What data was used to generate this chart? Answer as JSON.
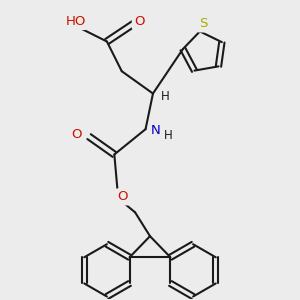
{
  "background_color": "#ececec",
  "bond_color": "#1a1a1a",
  "oxygen_color": "#cc1100",
  "nitrogen_color": "#0000cc",
  "sulfur_color": "#aaaa00",
  "figsize": [
    3.0,
    3.0
  ],
  "dpi": 100,
  "xlim": [
    0,
    10
  ],
  "ylim": [
    0,
    10
  ]
}
